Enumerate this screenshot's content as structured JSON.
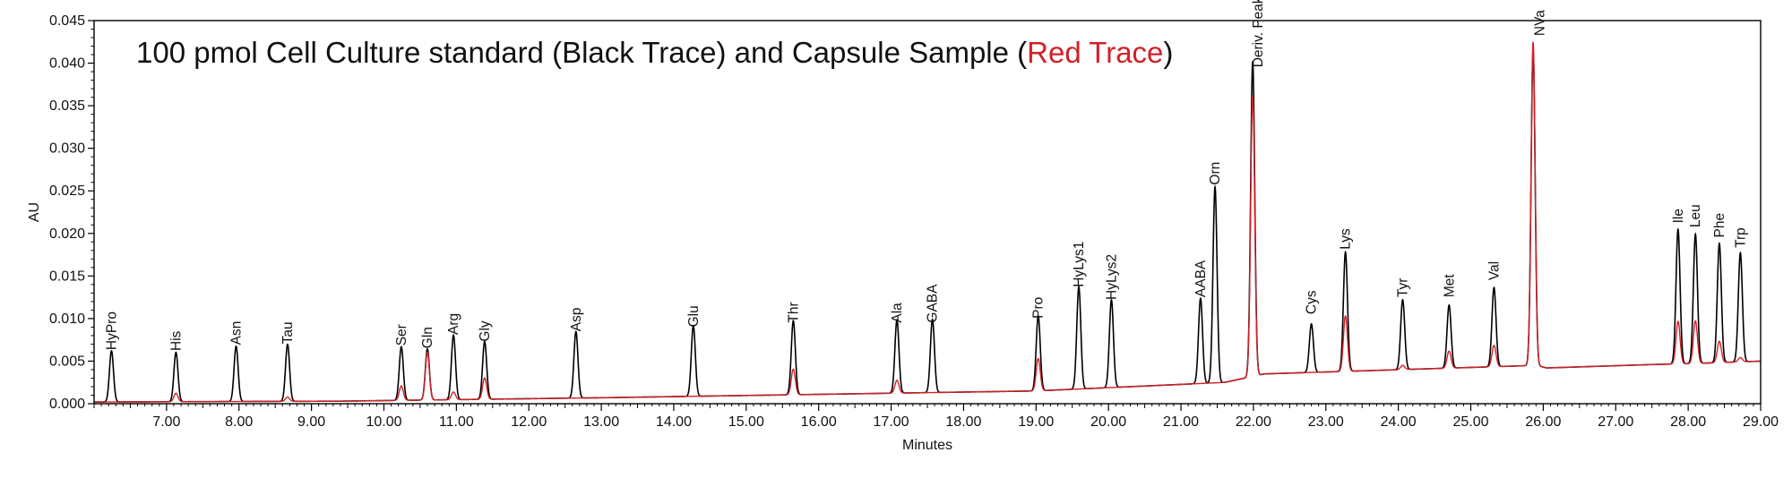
{
  "chart_data": {
    "type": "line",
    "title_parts": [
      {
        "text": "100 pmol Cell Culture standard (Black Trace) and Capsule Sample (",
        "color": "#111111"
      },
      {
        "text": "Red Trace",
        "color": "#d32027"
      },
      {
        "text": ")",
        "color": "#111111"
      }
    ],
    "xlabel": "Minutes",
    "ylabel": "AU",
    "xlim": [
      6.0,
      29.0
    ],
    "ylim": [
      0.0,
      0.045
    ],
    "x_ticks": [
      "7.00",
      "8.00",
      "9.00",
      "10.00",
      "11.00",
      "12.00",
      "13.00",
      "14.00",
      "15.00",
      "16.00",
      "17.00",
      "18.00",
      "19.00",
      "20.00",
      "21.00",
      "22.00",
      "23.00",
      "24.00",
      "25.00",
      "26.00",
      "27.00",
      "28.00",
      "29.00"
    ],
    "y_ticks": [
      "0.000",
      "0.005",
      "0.010",
      "0.015",
      "0.020",
      "0.025",
      "0.030",
      "0.035",
      "0.040",
      "0.045"
    ],
    "grid": false,
    "series": [
      {
        "color": "#000000",
        "baseline": [
          [
            6.0,
            0.0002
          ],
          [
            9.4,
            0.0003
          ],
          [
            13.0,
            0.0007
          ],
          [
            19.0,
            0.0015
          ],
          [
            21.6,
            0.0025
          ],
          [
            22.15,
            0.0035
          ],
          [
            25.9,
            0.0045
          ],
          [
            26.05,
            0.0042
          ],
          [
            27.5,
            0.0046
          ],
          [
            28.0,
            0.0047
          ],
          [
            29.0,
            0.005
          ]
        ],
        "peaks": [
          [
            6.24,
            0.006
          ],
          [
            7.13,
            0.0058
          ],
          [
            7.96,
            0.0065
          ],
          [
            8.67,
            0.0067
          ],
          [
            10.24,
            0.0063
          ],
          [
            10.6,
            0.006
          ],
          [
            10.96,
            0.0076
          ],
          [
            11.39,
            0.0068
          ],
          [
            12.65,
            0.0078
          ],
          [
            14.27,
            0.0083
          ],
          [
            15.65,
            0.0087
          ],
          [
            17.08,
            0.0086
          ],
          [
            17.57,
            0.0086
          ],
          [
            19.03,
            0.0088
          ],
          [
            19.59,
            0.012
          ],
          [
            20.04,
            0.0103
          ],
          [
            21.27,
            0.01
          ],
          [
            21.47,
            0.023
          ],
          [
            21.99,
            0.037
          ],
          [
            22.8,
            0.0057
          ],
          [
            23.27,
            0.014
          ],
          [
            24.06,
            0.0082
          ],
          [
            24.7,
            0.0074
          ],
          [
            25.32,
            0.0093
          ],
          [
            25.86,
            0.037
          ],
          [
            27.86,
            0.0158
          ],
          [
            28.1,
            0.0152
          ],
          [
            28.43,
            0.014
          ],
          [
            28.72,
            0.0128
          ]
        ]
      },
      {
        "color": "#d32027",
        "baseline": [
          [
            6.0,
            0.0002
          ],
          [
            9.4,
            0.0003
          ],
          [
            13.0,
            0.0007
          ],
          [
            19.0,
            0.0015
          ],
          [
            21.6,
            0.0025
          ],
          [
            22.15,
            0.0035
          ],
          [
            25.9,
            0.0045
          ],
          [
            26.05,
            0.0042
          ],
          [
            27.5,
            0.0046
          ],
          [
            28.0,
            0.0047
          ],
          [
            29.0,
            0.005
          ]
        ],
        "peaks": [
          [
            7.13,
            0.001
          ],
          [
            8.67,
            0.0005
          ],
          [
            10.24,
            0.0017
          ],
          [
            10.6,
            0.0056
          ],
          [
            10.96,
            0.0009
          ],
          [
            11.39,
            0.0025
          ],
          [
            15.65,
            0.003
          ],
          [
            17.08,
            0.0015
          ],
          [
            19.03,
            0.0038
          ],
          [
            21.99,
            0.033
          ],
          [
            23.27,
            0.0065
          ],
          [
            24.06,
            0.0005
          ],
          [
            24.7,
            0.002
          ],
          [
            25.32,
            0.0025
          ],
          [
            25.86,
            0.038
          ],
          [
            27.86,
            0.005
          ],
          [
            28.1,
            0.005
          ],
          [
            28.43,
            0.0025
          ],
          [
            28.72,
            0.0005
          ]
        ]
      }
    ],
    "peak_labels": [
      {
        "text": "HyPro",
        "x": 6.24,
        "y": 0.0063
      },
      {
        "text": "His",
        "x": 7.13,
        "y": 0.0062
      },
      {
        "text": "Asn",
        "x": 7.96,
        "y": 0.0069
      },
      {
        "text": "Tau",
        "x": 8.67,
        "y": 0.007
      },
      {
        "text": "Ser",
        "x": 10.24,
        "y": 0.0068
      },
      {
        "text": "Gln",
        "x": 10.6,
        "y": 0.0065
      },
      {
        "text": "Arg",
        "x": 10.96,
        "y": 0.0081
      },
      {
        "text": "Gly",
        "x": 11.39,
        "y": 0.0073
      },
      {
        "text": "Asp",
        "x": 12.65,
        "y": 0.0085
      },
      {
        "text": "Glu",
        "x": 14.27,
        "y": 0.009
      },
      {
        "text": "Thr",
        "x": 15.65,
        "y": 0.0095
      },
      {
        "text": "Ala",
        "x": 17.08,
        "y": 0.0095
      },
      {
        "text": "GABA",
        "x": 17.57,
        "y": 0.0095
      },
      {
        "text": "Pro",
        "x": 19.03,
        "y": 0.01
      },
      {
        "text": "HyLys1",
        "x": 19.59,
        "y": 0.0137
      },
      {
        "text": "HyLys2",
        "x": 20.04,
        "y": 0.0122
      },
      {
        "text": "AABA",
        "x": 21.27,
        "y": 0.0125
      },
      {
        "text": "Orn",
        "x": 21.47,
        "y": 0.0257
      },
      {
        "text": "Deriv. Peak",
        "x": 22.06,
        "y": 0.0395
      },
      {
        "text": "Cys",
        "x": 22.8,
        "y": 0.0105
      },
      {
        "text": "Lys",
        "x": 23.27,
        "y": 0.0181
      },
      {
        "text": "Tyr",
        "x": 24.06,
        "y": 0.0125
      },
      {
        "text": "Met",
        "x": 24.7,
        "y": 0.0125
      },
      {
        "text": "Val",
        "x": 25.32,
        "y": 0.0145
      },
      {
        "text": "NVa",
        "x": 25.95,
        "y": 0.0432
      },
      {
        "text": "Ile",
        "x": 27.86,
        "y": 0.0212
      },
      {
        "text": "Leu",
        "x": 28.1,
        "y": 0.0207
      },
      {
        "text": "Phe",
        "x": 28.43,
        "y": 0.0195
      },
      {
        "text": "Trp",
        "x": 28.72,
        "y": 0.0183
      }
    ]
  }
}
